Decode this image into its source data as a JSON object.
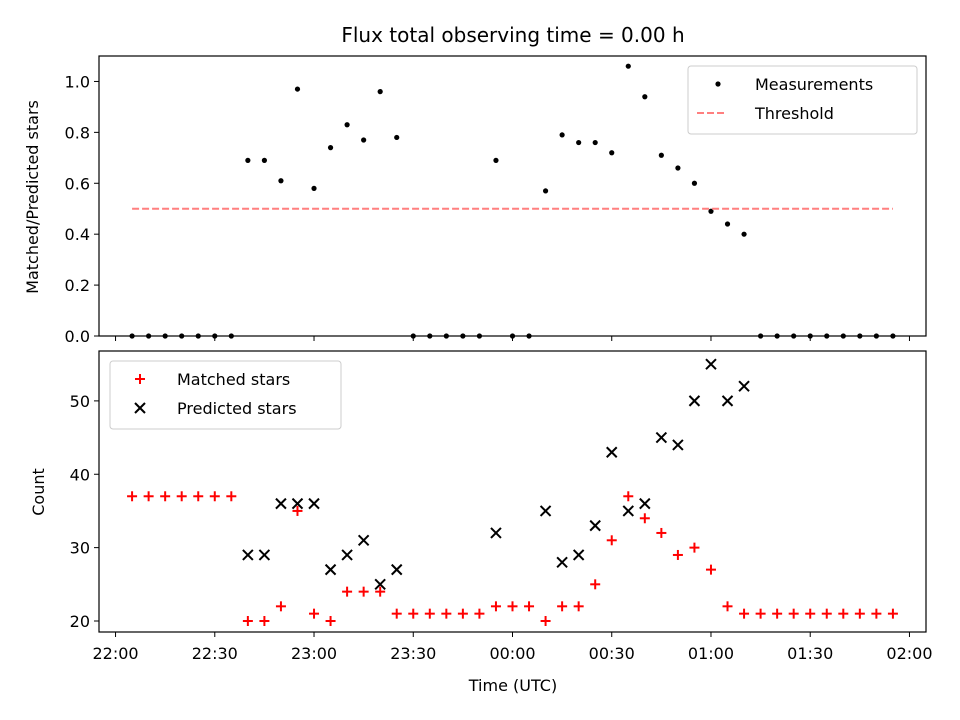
{
  "chart_data": [
    {
      "type": "scatter",
      "title": "Flux total observing time = 0.00 h",
      "xlabel": "",
      "ylabel": "Matched/Predicted stars",
      "xlim": [
        "21:55",
        "02:05"
      ],
      "ylim": [
        0,
        1.1
      ],
      "yticks": [
        0.0,
        0.2,
        0.4,
        0.6,
        0.8,
        1.0
      ],
      "ytick_labels": [
        "0.0",
        "0.2",
        "0.4",
        "0.6",
        "0.8",
        "1.0"
      ],
      "legend_position": "top-right",
      "series": [
        {
          "name": "Measurements",
          "marker": "dot",
          "color": "#000000",
          "points": [
            [
              "22:05",
              0.0
            ],
            [
              "22:10",
              0.0
            ],
            [
              "22:15",
              0.0
            ],
            [
              "22:20",
              0.0
            ],
            [
              "22:25",
              0.0
            ],
            [
              "22:30",
              0.0
            ],
            [
              "22:35",
              0.0
            ],
            [
              "22:40",
              0.69
            ],
            [
              "22:45",
              0.69
            ],
            [
              "22:50",
              0.61
            ],
            [
              "22:55",
              0.97
            ],
            [
              "23:00",
              0.58
            ],
            [
              "23:05",
              0.74
            ],
            [
              "23:10",
              0.83
            ],
            [
              "23:15",
              0.77
            ],
            [
              "23:20",
              0.96
            ],
            [
              "23:25",
              0.78
            ],
            [
              "23:30",
              0.0
            ],
            [
              "23:35",
              0.0
            ],
            [
              "23:40",
              0.0
            ],
            [
              "23:45",
              0.0
            ],
            [
              "23:50",
              0.0
            ],
            [
              "23:55",
              0.69
            ],
            [
              "00:00",
              0.0
            ],
            [
              "00:05",
              0.0
            ],
            [
              "00:10",
              0.57
            ],
            [
              "00:15",
              0.79
            ],
            [
              "00:20",
              0.76
            ],
            [
              "00:25",
              0.76
            ],
            [
              "00:30",
              0.72
            ],
            [
              "00:35",
              1.06
            ],
            [
              "00:40",
              0.94
            ],
            [
              "00:45",
              0.71
            ],
            [
              "00:50",
              0.66
            ],
            [
              "00:55",
              0.6
            ],
            [
              "01:00",
              0.49
            ],
            [
              "01:05",
              0.44
            ],
            [
              "01:10",
              0.4
            ],
            [
              "01:15",
              0.0
            ],
            [
              "01:20",
              0.0
            ],
            [
              "01:25",
              0.0
            ],
            [
              "01:30",
              0.0
            ],
            [
              "01:35",
              0.0
            ],
            [
              "01:40",
              0.0
            ],
            [
              "01:45",
              0.0
            ],
            [
              "01:50",
              0.0
            ],
            [
              "01:55",
              0.0
            ]
          ]
        },
        {
          "name": "Threshold",
          "type": "line",
          "style": "dashed",
          "color": "#ff7f7f",
          "points": [
            [
              "22:05",
              0.5
            ],
            [
              "01:55",
              0.5
            ]
          ]
        }
      ]
    },
    {
      "type": "scatter",
      "title": "",
      "xlabel": "Time (UTC)",
      "ylabel": "Count",
      "xlim": [
        "21:55",
        "02:05"
      ],
      "ylim": [
        18.5,
        56.8
      ],
      "xticks": [
        "22:00",
        "22:30",
        "23:00",
        "23:30",
        "00:00",
        "00:30",
        "01:00",
        "01:30",
        "02:00"
      ],
      "xtick_labels": [
        "22:00",
        "22:30",
        "23:00",
        "23:30",
        "00:00",
        "00:30",
        "01:00",
        "01:30",
        "02:00"
      ],
      "yticks": [
        20,
        30,
        40,
        50
      ],
      "ytick_labels": [
        "20",
        "30",
        "40",
        "50"
      ],
      "legend_position": "top-left",
      "series": [
        {
          "name": "Matched stars",
          "marker": "plus",
          "color": "#ff0000",
          "points": [
            [
              "22:05",
              37
            ],
            [
              "22:10",
              37
            ],
            [
              "22:15",
              37
            ],
            [
              "22:20",
              37
            ],
            [
              "22:25",
              37
            ],
            [
              "22:30",
              37
            ],
            [
              "22:35",
              37
            ],
            [
              "22:40",
              20
            ],
            [
              "22:45",
              20
            ],
            [
              "22:50",
              22
            ],
            [
              "22:55",
              35
            ],
            [
              "23:00",
              21
            ],
            [
              "23:05",
              20
            ],
            [
              "23:10",
              24
            ],
            [
              "23:15",
              24
            ],
            [
              "23:20",
              24
            ],
            [
              "23:25",
              21
            ],
            [
              "23:30",
              21
            ],
            [
              "23:35",
              21
            ],
            [
              "23:40",
              21
            ],
            [
              "23:45",
              21
            ],
            [
              "23:50",
              21
            ],
            [
              "23:55",
              22
            ],
            [
              "00:00",
              22
            ],
            [
              "00:05",
              22
            ],
            [
              "00:10",
              20
            ],
            [
              "00:15",
              22
            ],
            [
              "00:20",
              22
            ],
            [
              "00:25",
              25
            ],
            [
              "00:30",
              31
            ],
            [
              "00:35",
              37
            ],
            [
              "00:40",
              34
            ],
            [
              "00:45",
              32
            ],
            [
              "00:50",
              29
            ],
            [
              "00:55",
              30
            ],
            [
              "01:00",
              27
            ],
            [
              "01:05",
              22
            ],
            [
              "01:10",
              21
            ],
            [
              "01:15",
              21
            ],
            [
              "01:20",
              21
            ],
            [
              "01:25",
              21
            ],
            [
              "01:30",
              21
            ],
            [
              "01:35",
              21
            ],
            [
              "01:40",
              21
            ],
            [
              "01:45",
              21
            ],
            [
              "01:50",
              21
            ],
            [
              "01:55",
              21
            ]
          ]
        },
        {
          "name": "Predicted stars",
          "marker": "x",
          "color": "#000000",
          "points": [
            [
              "22:40",
              29
            ],
            [
              "22:45",
              29
            ],
            [
              "22:50",
              36
            ],
            [
              "22:55",
              36
            ],
            [
              "23:00",
              36
            ],
            [
              "23:05",
              27
            ],
            [
              "23:10",
              29
            ],
            [
              "23:15",
              31
            ],
            [
              "23:20",
              25
            ],
            [
              "23:25",
              27
            ],
            [
              "23:55",
              32
            ],
            [
              "00:10",
              35
            ],
            [
              "00:15",
              28
            ],
            [
              "00:20",
              29
            ],
            [
              "00:25",
              33
            ],
            [
              "00:30",
              43
            ],
            [
              "00:35",
              35
            ],
            [
              "00:40",
              36
            ],
            [
              "00:45",
              45
            ],
            [
              "00:50",
              44
            ],
            [
              "00:55",
              50
            ],
            [
              "01:00",
              55
            ],
            [
              "01:05",
              50
            ],
            [
              "01:10",
              52
            ]
          ]
        }
      ]
    }
  ]
}
